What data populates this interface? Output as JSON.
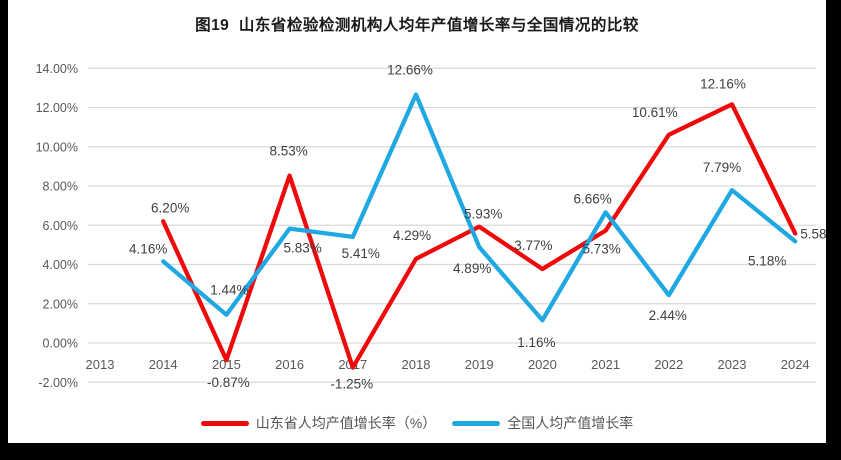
{
  "title": "图19  山东省检验检测机构人均年产值增长率与全国情况的比较",
  "colors": {
    "frame_background": "#000000",
    "canvas_background": "#ffffff",
    "grid": "#d9d9d9",
    "axis_text": "#595959",
    "data_label": "#404040",
    "title_text": "#1a1a1a",
    "shandong_red": "#ee0a0a",
    "national_blue": "#1fa8e1"
  },
  "chart_data": {
    "type": "line",
    "title": "图19  山东省检验检测机构人均年产值增长率与全国情况的比较",
    "categories": [
      "2013",
      "2014",
      "2015",
      "2016",
      "2017",
      "2018",
      "2019",
      "2020",
      "2021",
      "2022",
      "2023",
      "2024"
    ],
    "y_ticks": [
      "14.00%",
      "12.00%",
      "10.00%",
      "8.00%",
      "6.00%",
      "4.00%",
      "2.00%",
      "0.00%",
      "-2.00%"
    ],
    "y_tick_values": [
      14,
      12,
      10,
      8,
      6,
      4,
      2,
      0,
      -2
    ],
    "ylim": [
      -2,
      14
    ],
    "grid": true,
    "legend_position": "bottom",
    "series": [
      {
        "name": "山东省人均产值增长率（%）",
        "color": "#ee0a0a",
        "values": [
          null,
          6.2,
          -0.87,
          8.53,
          -1.25,
          4.29,
          5.93,
          3.77,
          5.73,
          10.61,
          12.16,
          5.58
        ],
        "point_labels": [
          null,
          "6.20%",
          "-0.87%",
          "8.53%",
          "-1.25%",
          "4.29%",
          "5.93%",
          "3.77%",
          "5.73%",
          "10.61%",
          "12.16%",
          "5.58%"
        ]
      },
      {
        "name": "全国人均产值增长率",
        "color": "#1fa8e1",
        "values": [
          null,
          4.16,
          1.44,
          5.83,
          5.41,
          12.66,
          4.89,
          1.16,
          6.66,
          2.44,
          7.79,
          5.18
        ],
        "point_labels": [
          null,
          "4.16%",
          "1.44%",
          "5.83%",
          "5.41%",
          "12.66%",
          "4.89%",
          "1.16%",
          "6.66%",
          "2.44%",
          "7.79%",
          "5.18%"
        ]
      }
    ]
  },
  "legend": {
    "items": [
      {
        "label": "山东省人均产值增长率（%）",
        "color": "#ee0a0a"
      },
      {
        "label": "全国人均产值增长率",
        "color": "#1fa8e1"
      }
    ]
  }
}
